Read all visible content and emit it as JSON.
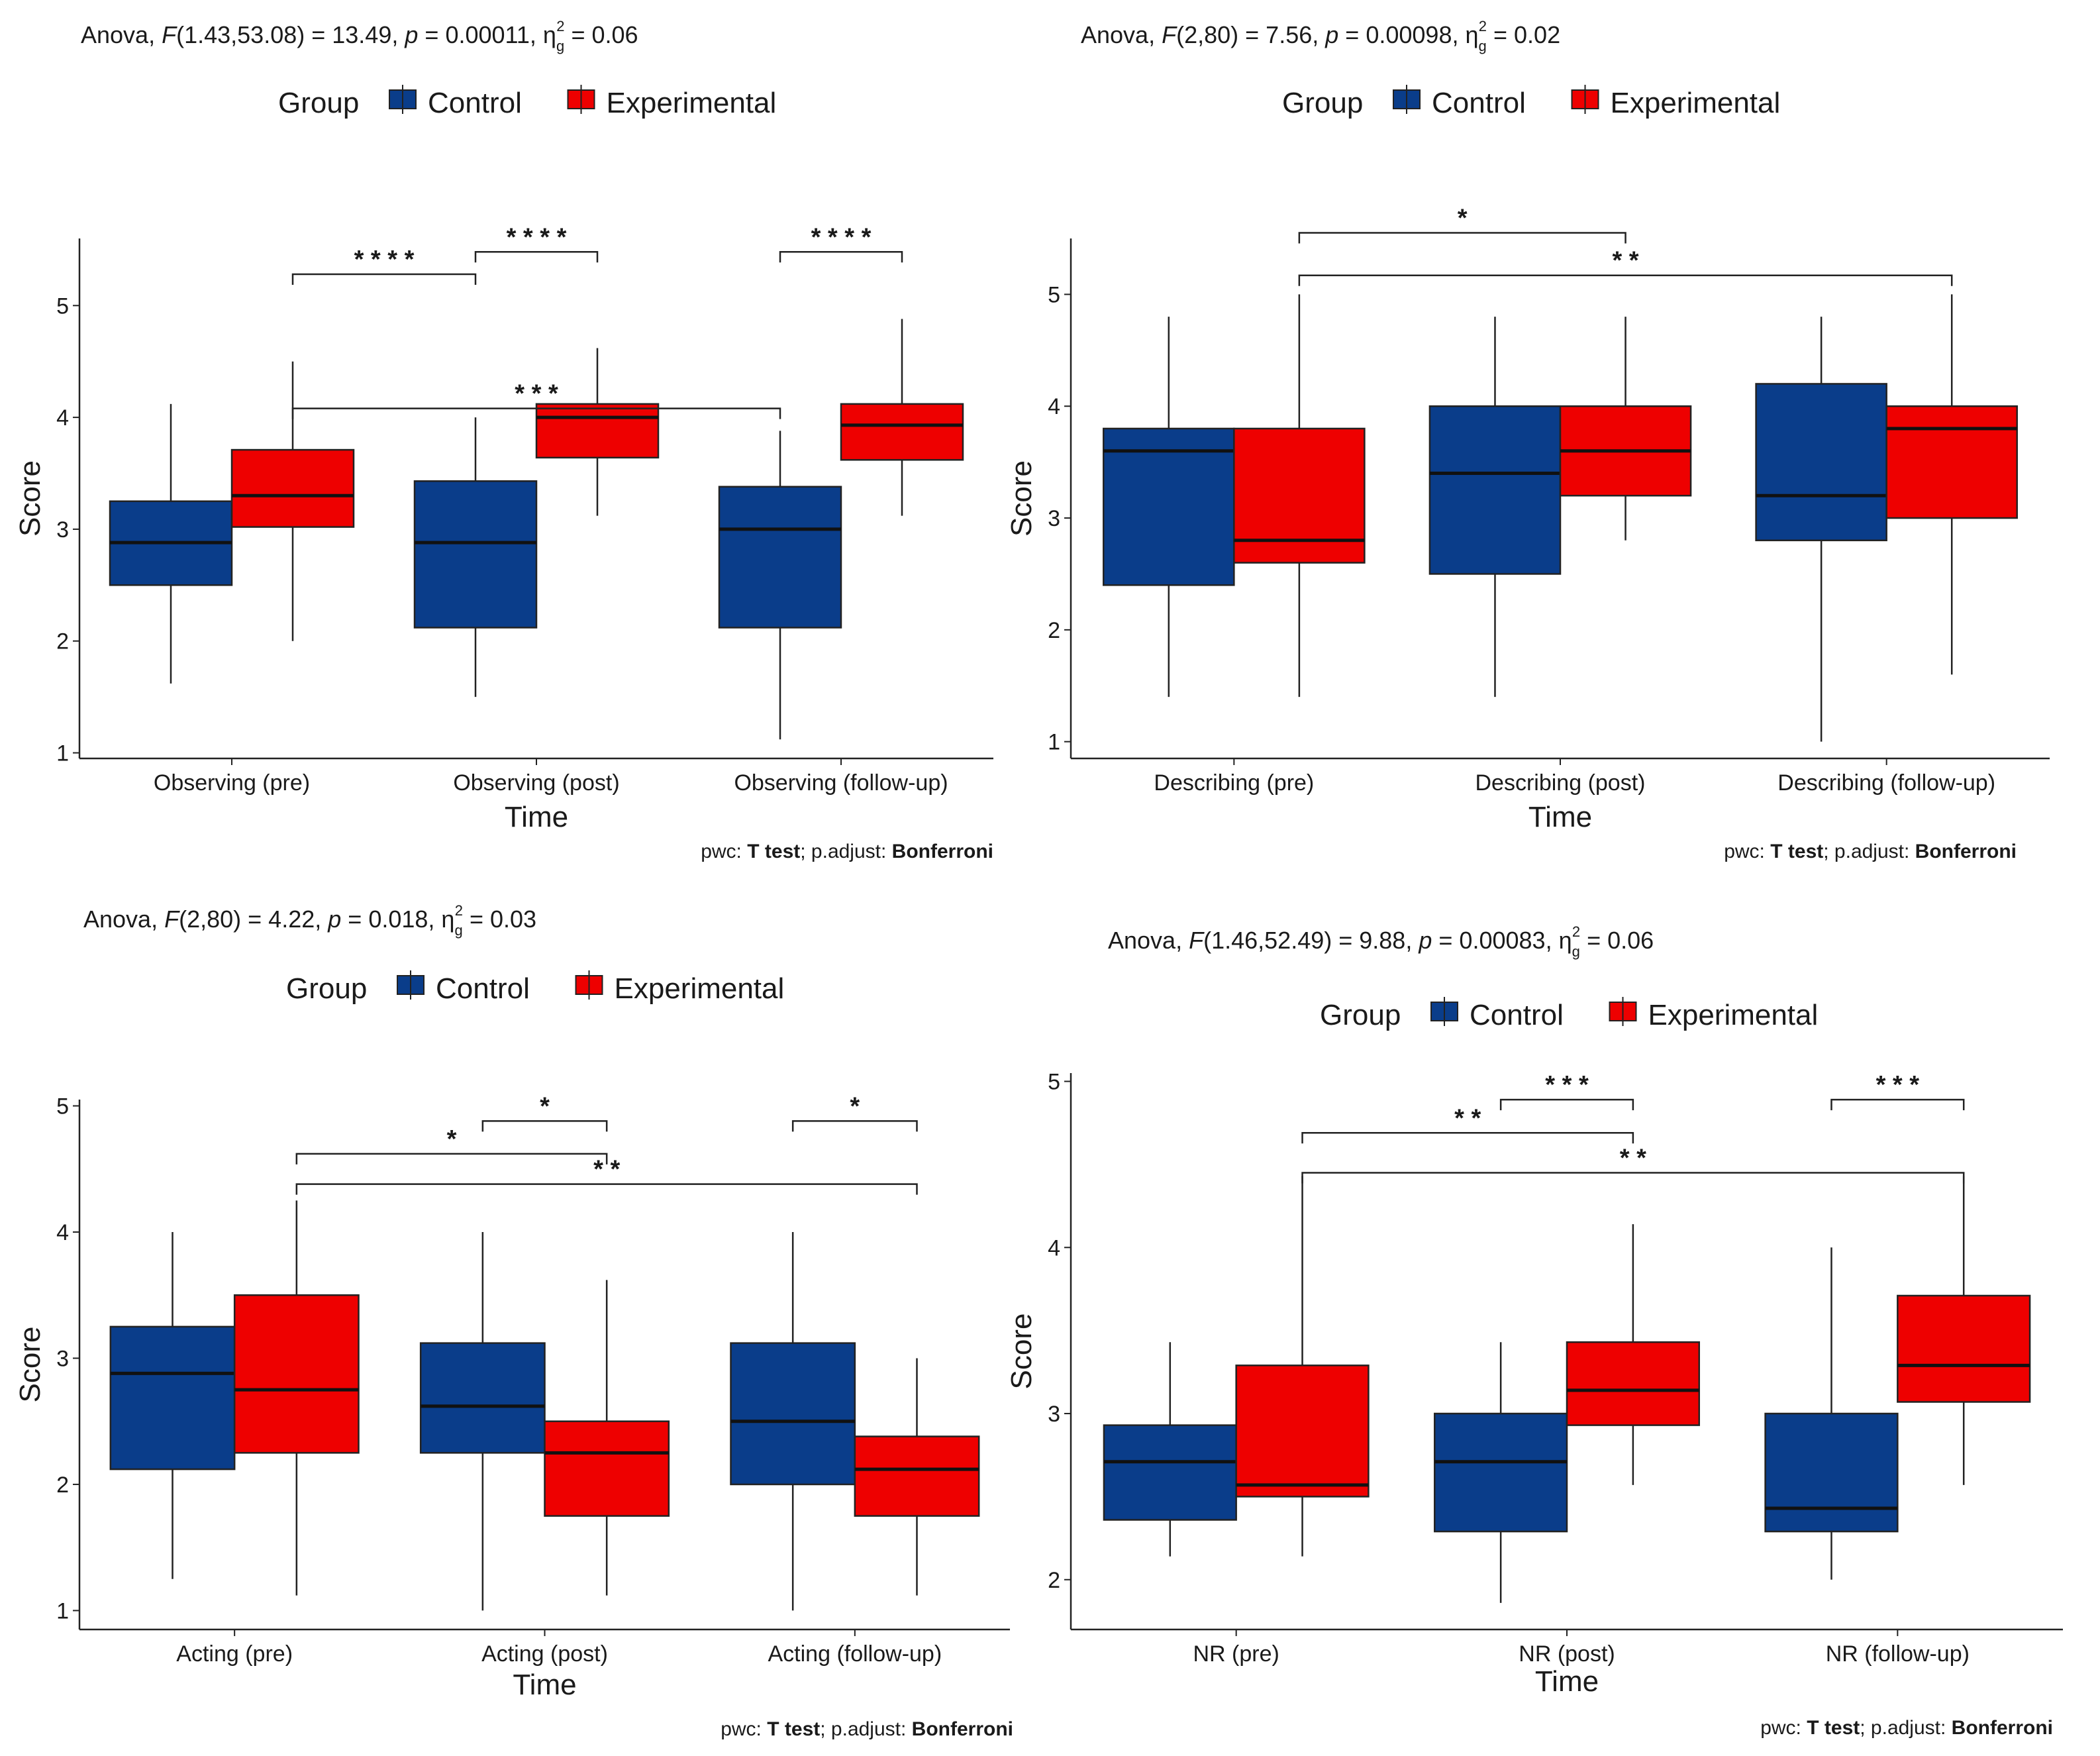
{
  "figure": {
    "legend_title": "Group",
    "groups": [
      {
        "name": "Control",
        "color": "#0a3d8a"
      },
      {
        "name": "Experimental",
        "color": "#ee0000"
      }
    ],
    "pwc_prefix": "pwc:",
    "pwc_method": "T test",
    "pwc_adjust_label": "; p.adjust:",
    "pwc_adjust_method": "Bonferroni",
    "anova_label": "Anova,"
  },
  "chart_data": [
    {
      "type": "boxplot",
      "panel": "top-left",
      "anova": {
        "df": "F(1.43,53.08)",
        "F": "13.49",
        "p": "0.00011",
        "ges": "0.06"
      },
      "xlabel": "Time",
      "ylabel": "Score",
      "ylim": [
        0.95,
        5.6
      ],
      "yticks": [
        1,
        2,
        3,
        4,
        5
      ],
      "categories": [
        "Observing (pre)",
        "Observing (post)",
        "Observing (follow-up)"
      ],
      "series": [
        {
          "name": "Control",
          "boxes": [
            {
              "min": 1.62,
              "q1": 2.5,
              "median": 2.88,
              "q3": 3.25,
              "max": 4.12
            },
            {
              "min": 1.5,
              "q1": 2.12,
              "median": 2.88,
              "q3": 3.43,
              "max": 4.0
            },
            {
              "min": 1.12,
              "q1": 2.12,
              "median": 3.0,
              "q3": 3.38,
              "max": 3.88
            }
          ]
        },
        {
          "name": "Experimental",
          "boxes": [
            {
              "min": 2.0,
              "q1": 3.02,
              "median": 3.3,
              "q3": 3.71,
              "max": 4.5
            },
            {
              "min": 3.12,
              "q1": 3.64,
              "median": 4.0,
              "q3": 4.12,
              "max": 4.62
            },
            {
              "min": 3.12,
              "q1": 3.62,
              "median": 3.93,
              "q3": 4.12,
              "max": 4.88
            }
          ]
        }
      ],
      "comparisons": [
        {
          "from": [
            1,
            0
          ],
          "to": [
            1,
            1
          ],
          "y": 5.48,
          "label": "* * * *"
        },
        {
          "from": [
            2,
            0
          ],
          "to": [
            2,
            1
          ],
          "y": 5.48,
          "label": "* * * *"
        },
        {
          "from": [
            0,
            1
          ],
          "to": [
            1,
            0
          ],
          "y": 5.28,
          "label": "* * * *"
        },
        {
          "from": [
            0,
            1
          ],
          "to": [
            2,
            0
          ],
          "y": 4.08,
          "label": "* * *"
        }
      ]
    },
    {
      "type": "boxplot",
      "panel": "top-right",
      "anova": {
        "df": "F(2,80)",
        "F": "7.56",
        "p": "0.00098",
        "ges": "0.02"
      },
      "xlabel": "Time",
      "ylabel": "Score",
      "ylim": [
        0.85,
        5.5
      ],
      "yticks": [
        1,
        2,
        3,
        4,
        5
      ],
      "categories": [
        "Describing (pre)",
        "Describing (post)",
        "Describing (follow-up)"
      ],
      "series": [
        {
          "name": "Control",
          "boxes": [
            {
              "min": 1.4,
              "q1": 2.4,
              "median": 3.6,
              "q3": 3.8,
              "max": 4.8
            },
            {
              "min": 1.4,
              "q1": 2.5,
              "median": 3.4,
              "q3": 4.0,
              "max": 4.8
            },
            {
              "min": 1.0,
              "q1": 2.8,
              "median": 3.2,
              "q3": 4.2,
              "max": 4.8
            }
          ]
        },
        {
          "name": "Experimental",
          "boxes": [
            {
              "min": 1.4,
              "q1": 2.6,
              "median": 2.8,
              "q3": 3.8,
              "max": 5.0
            },
            {
              "min": 2.8,
              "q1": 3.2,
              "median": 3.6,
              "q3": 4.0,
              "max": 4.8
            },
            {
              "min": 1.6,
              "q1": 3.0,
              "median": 3.8,
              "q3": 4.0,
              "max": 5.0
            }
          ]
        }
      ],
      "comparisons": [
        {
          "from": [
            0,
            1
          ],
          "to": [
            1,
            1
          ],
          "y": 5.55,
          "label": "*"
        },
        {
          "from": [
            0,
            1
          ],
          "to": [
            2,
            1
          ],
          "y": 5.17,
          "label": "* *"
        }
      ]
    },
    {
      "type": "boxplot",
      "panel": "bottom-left",
      "anova": {
        "df": "F(2,80)",
        "F": "4.22",
        "p": "0.018",
        "ges": "0.03"
      },
      "xlabel": "Time",
      "ylabel": "Score",
      "ylim": [
        0.85,
        5.05
      ],
      "yticks": [
        1,
        2,
        3,
        4,
        5
      ],
      "categories": [
        "Acting (pre)",
        "Acting (post)",
        "Acting (follow-up)"
      ],
      "series": [
        {
          "name": "Control",
          "boxes": [
            {
              "min": 1.25,
              "q1": 2.12,
              "median": 2.88,
              "q3": 3.25,
              "max": 4.0
            },
            {
              "min": 1.0,
              "q1": 2.25,
              "median": 2.62,
              "q3": 3.12,
              "max": 4.0
            },
            {
              "min": 1.0,
              "q1": 2.0,
              "median": 2.5,
              "q3": 3.12,
              "max": 4.0
            }
          ]
        },
        {
          "name": "Experimental",
          "boxes": [
            {
              "min": 1.12,
              "q1": 2.25,
              "median": 2.75,
              "q3": 3.5,
              "max": 4.25
            },
            {
              "min": 1.12,
              "q1": 1.75,
              "median": 2.25,
              "q3": 2.5,
              "max": 3.62
            },
            {
              "min": 1.12,
              "q1": 1.75,
              "median": 2.12,
              "q3": 2.38,
              "max": 3.0
            }
          ]
        }
      ],
      "comparisons": [
        {
          "from": [
            1,
            0
          ],
          "to": [
            1,
            1
          ],
          "y": 4.88,
          "label": "*"
        },
        {
          "from": [
            2,
            0
          ],
          "to": [
            2,
            1
          ],
          "y": 4.88,
          "label": "*"
        },
        {
          "from": [
            0,
            1
          ],
          "to": [
            1,
            1
          ],
          "y": 4.62,
          "label": "*"
        },
        {
          "from": [
            0,
            1
          ],
          "to": [
            2,
            1
          ],
          "y": 4.38,
          "label": "* *"
        }
      ]
    },
    {
      "type": "boxplot",
      "panel": "bottom-right",
      "anova": {
        "df": "F(1.46,52.49)",
        "F": "9.88",
        "p": "0.00083",
        "ges": "0.06"
      },
      "xlabel": "Time",
      "ylabel": "Score",
      "ylim": [
        1.7,
        5.05
      ],
      "yticks": [
        2,
        3,
        4,
        5
      ],
      "categories": [
        "NR (pre)",
        "NR (post)",
        "NR (follow-up)"
      ],
      "series": [
        {
          "name": "Control",
          "boxes": [
            {
              "min": 2.14,
              "q1": 2.36,
              "median": 2.71,
              "q3": 2.93,
              "max": 3.43
            },
            {
              "min": 1.86,
              "q1": 2.29,
              "median": 2.71,
              "q3": 3.0,
              "max": 3.43
            },
            {
              "min": 2.0,
              "q1": 2.29,
              "median": 2.43,
              "q3": 3.0,
              "max": 4.0
            }
          ]
        },
        {
          "name": "Experimental",
          "boxes": [
            {
              "min": 2.14,
              "q1": 2.5,
              "median": 2.57,
              "q3": 3.29,
              "max": 4.43
            },
            {
              "min": 2.57,
              "q1": 2.93,
              "median": 3.14,
              "q3": 3.43,
              "max": 4.14
            },
            {
              "min": 2.57,
              "q1": 3.07,
              "median": 3.29,
              "q3": 3.71,
              "max": 4.43
            }
          ]
        }
      ],
      "comparisons": [
        {
          "from": [
            1,
            0
          ],
          "to": [
            1,
            1
          ],
          "y": 4.89,
          "label": "* * *"
        },
        {
          "from": [
            2,
            0
          ],
          "to": [
            2,
            1
          ],
          "y": 4.89,
          "label": "* * *"
        },
        {
          "from": [
            0,
            1
          ],
          "to": [
            1,
            1
          ],
          "y": 4.69,
          "label": "* *"
        },
        {
          "from": [
            0,
            1
          ],
          "to": [
            2,
            1
          ],
          "y": 4.45,
          "label": "* *"
        }
      ]
    }
  ]
}
